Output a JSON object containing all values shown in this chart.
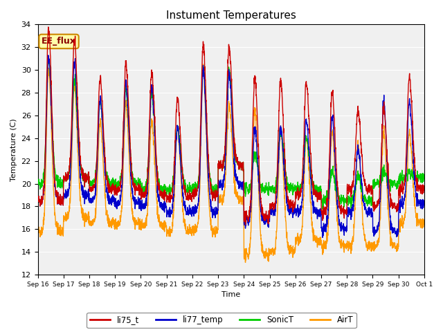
{
  "title": "Instument Temperatures",
  "xlabel": "Time",
  "ylabel": "Temperature (C)",
  "ylim": [
    12,
    34
  ],
  "yticks": [
    12,
    14,
    16,
    18,
    20,
    22,
    24,
    26,
    28,
    30,
    32,
    34
  ],
  "legend_labels": [
    "li75_t",
    "li77_temp",
    "SonicT",
    "AirT"
  ],
  "line_colors": [
    "#cc0000",
    "#0000cc",
    "#00cc00",
    "#ff9900"
  ],
  "background_color": "#ffffff",
  "plot_bg_color": "#f0f0f0",
  "annotation_text": "EE_flux",
  "annotation_bg": "#ffffaa",
  "annotation_border": "#cc8800",
  "annotation_text_color": "#880000",
  "x_tick_labels": [
    "Sep 16",
    "Sep 17",
    "Sep 18",
    "Sep 19",
    "Sep 20",
    "Sep 21",
    "Sep 22",
    "Sep 23",
    "Sep 24",
    "Sep 25",
    "Sep 26",
    "Sep 27",
    "Sep 28",
    "Sep 29",
    "Sep 30",
    "Oct 1"
  ],
  "num_days": 15,
  "points_per_day": 144,
  "li75_peaks": [
    33.6,
    32.5,
    29.3,
    30.5,
    29.8,
    27.5,
    32.2,
    32.0,
    29.3,
    29.2,
    28.8,
    28.0,
    26.5,
    26.6,
    29.4
  ],
  "li77_peaks": [
    31.1,
    30.5,
    27.5,
    28.8,
    28.5,
    25.0,
    30.1,
    29.8,
    24.8,
    25.0,
    25.5,
    25.8,
    23.1,
    27.2,
    27.2
  ],
  "sonic_peaks": [
    31.0,
    29.0,
    27.4,
    28.3,
    28.0,
    25.0,
    30.1,
    30.0,
    22.5,
    24.8,
    24.0,
    21.0,
    20.8,
    21.0,
    21.0
  ],
  "air_peaks": [
    30.0,
    28.5,
    25.5,
    27.0,
    25.5,
    25.0,
    30.2,
    27.0,
    26.5,
    25.0,
    24.0,
    24.5,
    23.5,
    24.5,
    24.5
  ],
  "li75_nights": [
    18.5,
    20.5,
    19.5,
    19.5,
    19.0,
    18.8,
    19.0,
    21.5,
    17.0,
    18.0,
    19.0,
    17.5,
    19.5,
    18.0,
    19.5
  ],
  "li77_nights": [
    18.5,
    19.0,
    18.5,
    18.3,
    18.0,
    17.5,
    17.5,
    19.8,
    16.7,
    17.5,
    17.5,
    16.0,
    17.5,
    15.8,
    18.2
  ],
  "sonic_nights": [
    20.0,
    20.5,
    20.0,
    20.0,
    19.5,
    19.5,
    19.5,
    21.5,
    19.5,
    19.5,
    19.5,
    18.5,
    18.5,
    20.0,
    20.5
  ],
  "air_nights": [
    15.8,
    17.0,
    16.5,
    16.5,
    16.3,
    15.8,
    15.8,
    18.5,
    13.7,
    14.0,
    15.0,
    14.5,
    14.5,
    14.5,
    16.5
  ],
  "linewidth": 1.0,
  "figsize": [
    6.4,
    4.8
  ],
  "dpi": 100
}
